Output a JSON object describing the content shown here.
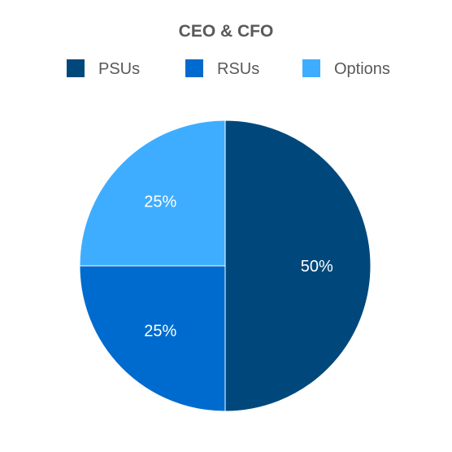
{
  "chart_data": {
    "type": "pie",
    "title": "CEO & CFO",
    "legend_position": "top",
    "slices": [
      {
        "label": "PSUs",
        "value": 50,
        "display": "50%",
        "color": "#00487c"
      },
      {
        "label": "RSUs",
        "value": 25,
        "display": "25%",
        "color": "#006bce"
      },
      {
        "label": "Options",
        "value": 25,
        "display": "25%",
        "color": "#3fadff"
      }
    ],
    "label_color": "#ffffff",
    "legend_text_color": "#595959"
  }
}
